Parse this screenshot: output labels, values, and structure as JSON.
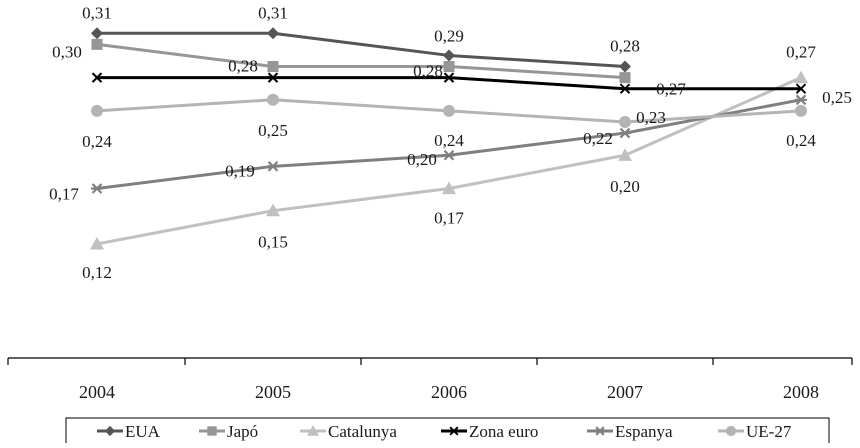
{
  "chart_data": {
    "type": "line",
    "categories": [
      "2004",
      "2005",
      "2006",
      "2007",
      "2008"
    ],
    "ylim": [
      0.0,
      0.34
    ],
    "grid": false,
    "legend_position": "bottom",
    "series": [
      {
        "name": "EUA",
        "color": "#555555",
        "marker": "diamond",
        "values": [
          0.31,
          0.31,
          0.29,
          0.28,
          null
        ],
        "labels": [
          "0,31",
          "0,31",
          "0,29",
          "0,28",
          ""
        ]
      },
      {
        "name": "Japó",
        "color": "#969696",
        "marker": "square",
        "values": [
          0.3,
          0.28,
          0.28,
          0.27,
          null
        ],
        "labels": [
          "0,30",
          "0,28",
          "0,28",
          "0,27",
          ""
        ]
      },
      {
        "name": "Catalunya",
        "color": "#c0c0c0",
        "marker": "triangle",
        "values": [
          0.12,
          0.15,
          0.17,
          0.2,
          0.27
        ],
        "labels": [
          "0,12",
          "0,15",
          "0,17",
          "0,20",
          "0,27"
        ]
      },
      {
        "name": "Zona euro",
        "color": "#000000",
        "marker": "x",
        "values": [
          0.27,
          0.27,
          0.27,
          0.26,
          0.26
        ],
        "labels": [
          "",
          "",
          "",
          "",
          ""
        ]
      },
      {
        "name": "Espanya",
        "color": "#7f7f7f",
        "marker": "asterisk",
        "values": [
          0.17,
          0.19,
          0.2,
          0.22,
          0.25
        ],
        "labels": [
          "0,17",
          "0,19",
          "0,20",
          "0,22",
          "0,25"
        ]
      },
      {
        "name": "UE-27",
        "color": "#b4b4b4",
        "marker": "circle",
        "values": [
          0.24,
          0.25,
          0.24,
          0.23,
          0.24
        ],
        "labels": [
          "0,24",
          "0,25",
          "0,24",
          "0,23",
          "0,24"
        ]
      }
    ]
  }
}
